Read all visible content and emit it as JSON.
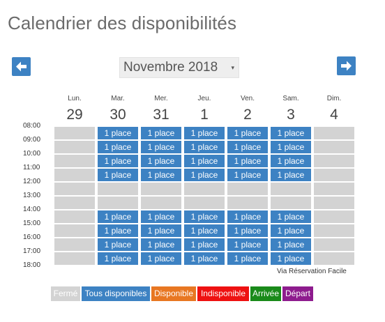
{
  "title": "Calendrier des disponibilités",
  "nav": {
    "prev_icon": "arrow-left-icon",
    "next_icon": "arrow-right-icon"
  },
  "month_select": {
    "value": "Novembre 2018",
    "caret": "▾"
  },
  "days": [
    {
      "name": "Lun.",
      "num": "29"
    },
    {
      "name": "Mar.",
      "num": "30"
    },
    {
      "name": "Mer.",
      "num": "31"
    },
    {
      "name": "Jeu.",
      "num": "1"
    },
    {
      "name": "Ven.",
      "num": "2"
    },
    {
      "name": "Sam.",
      "num": "3"
    },
    {
      "name": "Dim.",
      "num": "4"
    }
  ],
  "hours": [
    "08:00",
    "09:00",
    "10:00",
    "11:00",
    "12:00",
    "13:00",
    "14:00",
    "15:00",
    "16:00",
    "17:00",
    "18:00"
  ],
  "slot_label": "1 place",
  "availability": [
    [
      0,
      1,
      1,
      1,
      1,
      1,
      0
    ],
    [
      0,
      1,
      1,
      1,
      1,
      1,
      0
    ],
    [
      0,
      1,
      1,
      1,
      1,
      1,
      0
    ],
    [
      0,
      1,
      1,
      1,
      1,
      1,
      0
    ],
    [
      0,
      0,
      0,
      0,
      0,
      0,
      0
    ],
    [
      0,
      0,
      0,
      0,
      0,
      0,
      0
    ],
    [
      0,
      1,
      1,
      1,
      1,
      1,
      0
    ],
    [
      0,
      1,
      1,
      1,
      1,
      1,
      0
    ],
    [
      0,
      1,
      1,
      1,
      1,
      1,
      0
    ],
    [
      0,
      1,
      1,
      1,
      1,
      1,
      0
    ]
  ],
  "credit": "Via Réservation Facile",
  "legend": [
    {
      "label": "Fermé",
      "color": "#d3d3d3"
    },
    {
      "label": "Tous disponibles",
      "color": "#3d82c3"
    },
    {
      "label": "Disponible",
      "color": "#e87722"
    },
    {
      "label": "Indisponible",
      "color": "#ee1111"
    },
    {
      "label": "Arrivée",
      "color": "#1a8a1a"
    },
    {
      "label": "Départ",
      "color": "#8e1c8e"
    }
  ],
  "colors": {
    "closed": "#d3d3d3",
    "available": "#3d82c3"
  }
}
